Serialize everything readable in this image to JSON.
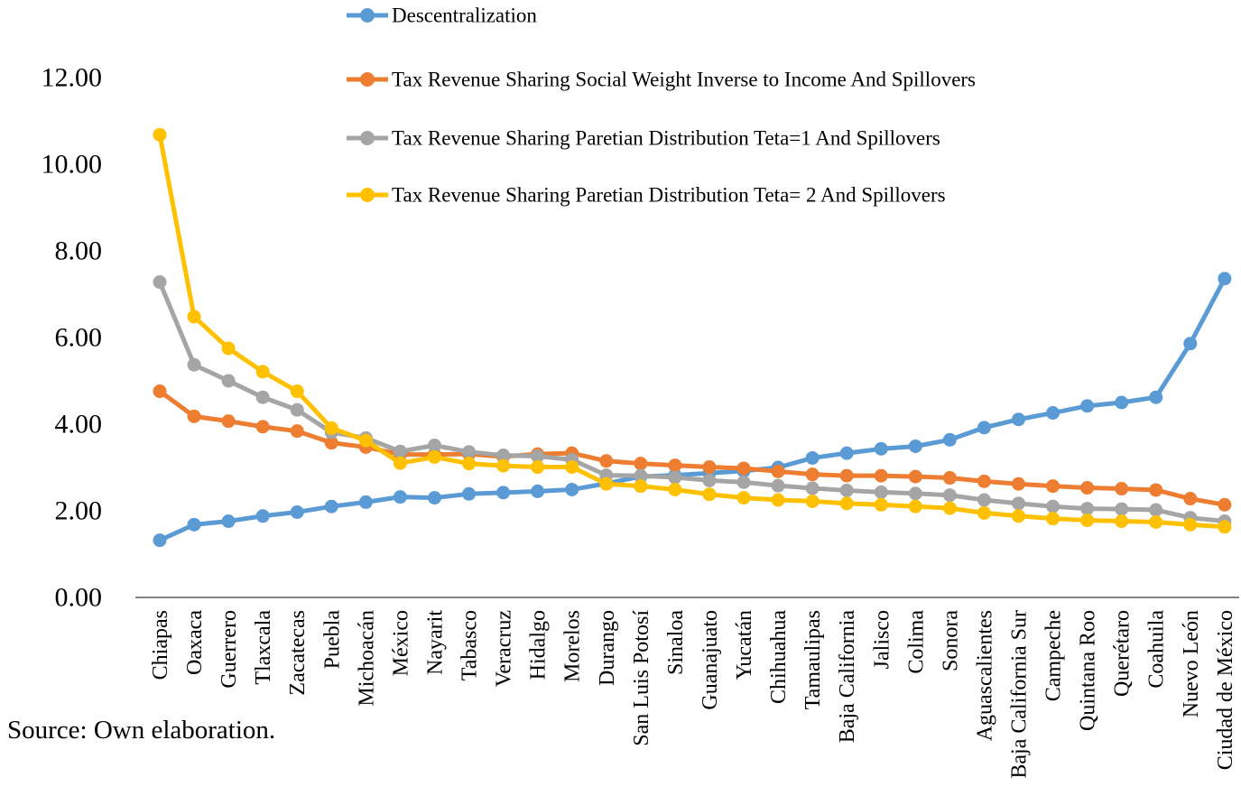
{
  "figure": {
    "source_note": "Source: Own elaboration."
  },
  "colors": {
    "blue": "#5B9BD5",
    "orange": "#ED7D31",
    "gray": "#A5A5A5",
    "yellow": "#FFC000",
    "axis": "#595959",
    "text": "#000000"
  },
  "chart_data": {
    "type": "line",
    "title": "",
    "grid": false,
    "legend_position": "top",
    "x_axis": {
      "label_rotation_deg": -90
    },
    "y_axis": {
      "min": 0,
      "max": 12,
      "ticks": [
        {
          "value": 0,
          "label": "0.00"
        },
        {
          "value": 2,
          "label": "2.00"
        },
        {
          "value": 4,
          "label": "4.00"
        },
        {
          "value": 6,
          "label": "6.00"
        },
        {
          "value": 8,
          "label": "8.00"
        },
        {
          "value": 10,
          "label": "10.00"
        },
        {
          "value": 12,
          "label": "12.00"
        }
      ]
    },
    "categories": [
      "Chiapas",
      "Oaxaca",
      "Guerrero",
      "Tlaxcala",
      "Zacatecas",
      "Puebla",
      "Michoacán",
      "México",
      "Nayarit",
      "Tabasco",
      "Veracruz",
      "Hidalgo",
      "Morelos",
      "Durango",
      "San Luis Potosí",
      "Sinaloa",
      "Guanajuato",
      "Yucatán",
      "Chihuahua",
      "Tamaulipas",
      "Baja California",
      "Jalisco",
      "Colima",
      "Sonora",
      "Aguascalientes",
      "Baja California Sur",
      "Campeche",
      "Quintana Roo",
      "Querétaro",
      "Coahuila",
      "Nuevo León",
      "Ciudad de México"
    ],
    "series": [
      {
        "name": "Descentralization",
        "color_key": "blue",
        "values": [
          1.32,
          1.68,
          1.76,
          1.88,
          1.97,
          2.1,
          2.2,
          2.32,
          2.3,
          2.39,
          2.42,
          2.45,
          2.49,
          2.63,
          2.79,
          2.82,
          2.87,
          2.92,
          3.0,
          3.22,
          3.33,
          3.43,
          3.49,
          3.64,
          3.92,
          4.11,
          4.26,
          4.42,
          4.5,
          4.62,
          5.86,
          7.36
        ]
      },
      {
        "name": "Tax Revenue Sharing Social Weight Inverse to Income And Spillovers",
        "color_key": "orange",
        "values": [
          4.76,
          4.18,
          4.07,
          3.94,
          3.84,
          3.57,
          3.47,
          3.3,
          3.3,
          3.31,
          3.25,
          3.31,
          3.33,
          3.15,
          3.09,
          3.05,
          3.01,
          2.98,
          2.91,
          2.84,
          2.81,
          2.81,
          2.79,
          2.76,
          2.68,
          2.62,
          2.57,
          2.53,
          2.51,
          2.48,
          2.28,
          2.14
        ]
      },
      {
        "name": "Tax Revenue Sharing Paretian Distribution Teta=1  And Spillovers",
        "color_key": "gray",
        "values": [
          7.28,
          5.37,
          5.0,
          4.62,
          4.33,
          3.81,
          3.68,
          3.37,
          3.51,
          3.36,
          3.28,
          3.26,
          3.18,
          2.82,
          2.81,
          2.77,
          2.7,
          2.66,
          2.58,
          2.52,
          2.47,
          2.43,
          2.4,
          2.36,
          2.25,
          2.17,
          2.1,
          2.05,
          2.04,
          2.02,
          1.84,
          1.76
        ]
      },
      {
        "name": "Tax Revenue Sharing Paretian Distribution Teta= 2 And Spillovers",
        "color_key": "yellow",
        "values": [
          10.68,
          6.48,
          5.75,
          5.21,
          4.76,
          3.91,
          3.62,
          3.1,
          3.24,
          3.09,
          3.04,
          3.01,
          3.01,
          2.62,
          2.57,
          2.49,
          2.38,
          2.3,
          2.25,
          2.22,
          2.17,
          2.14,
          2.1,
          2.06,
          1.95,
          1.88,
          1.82,
          1.78,
          1.76,
          1.74,
          1.68,
          1.63
        ]
      }
    ]
  }
}
